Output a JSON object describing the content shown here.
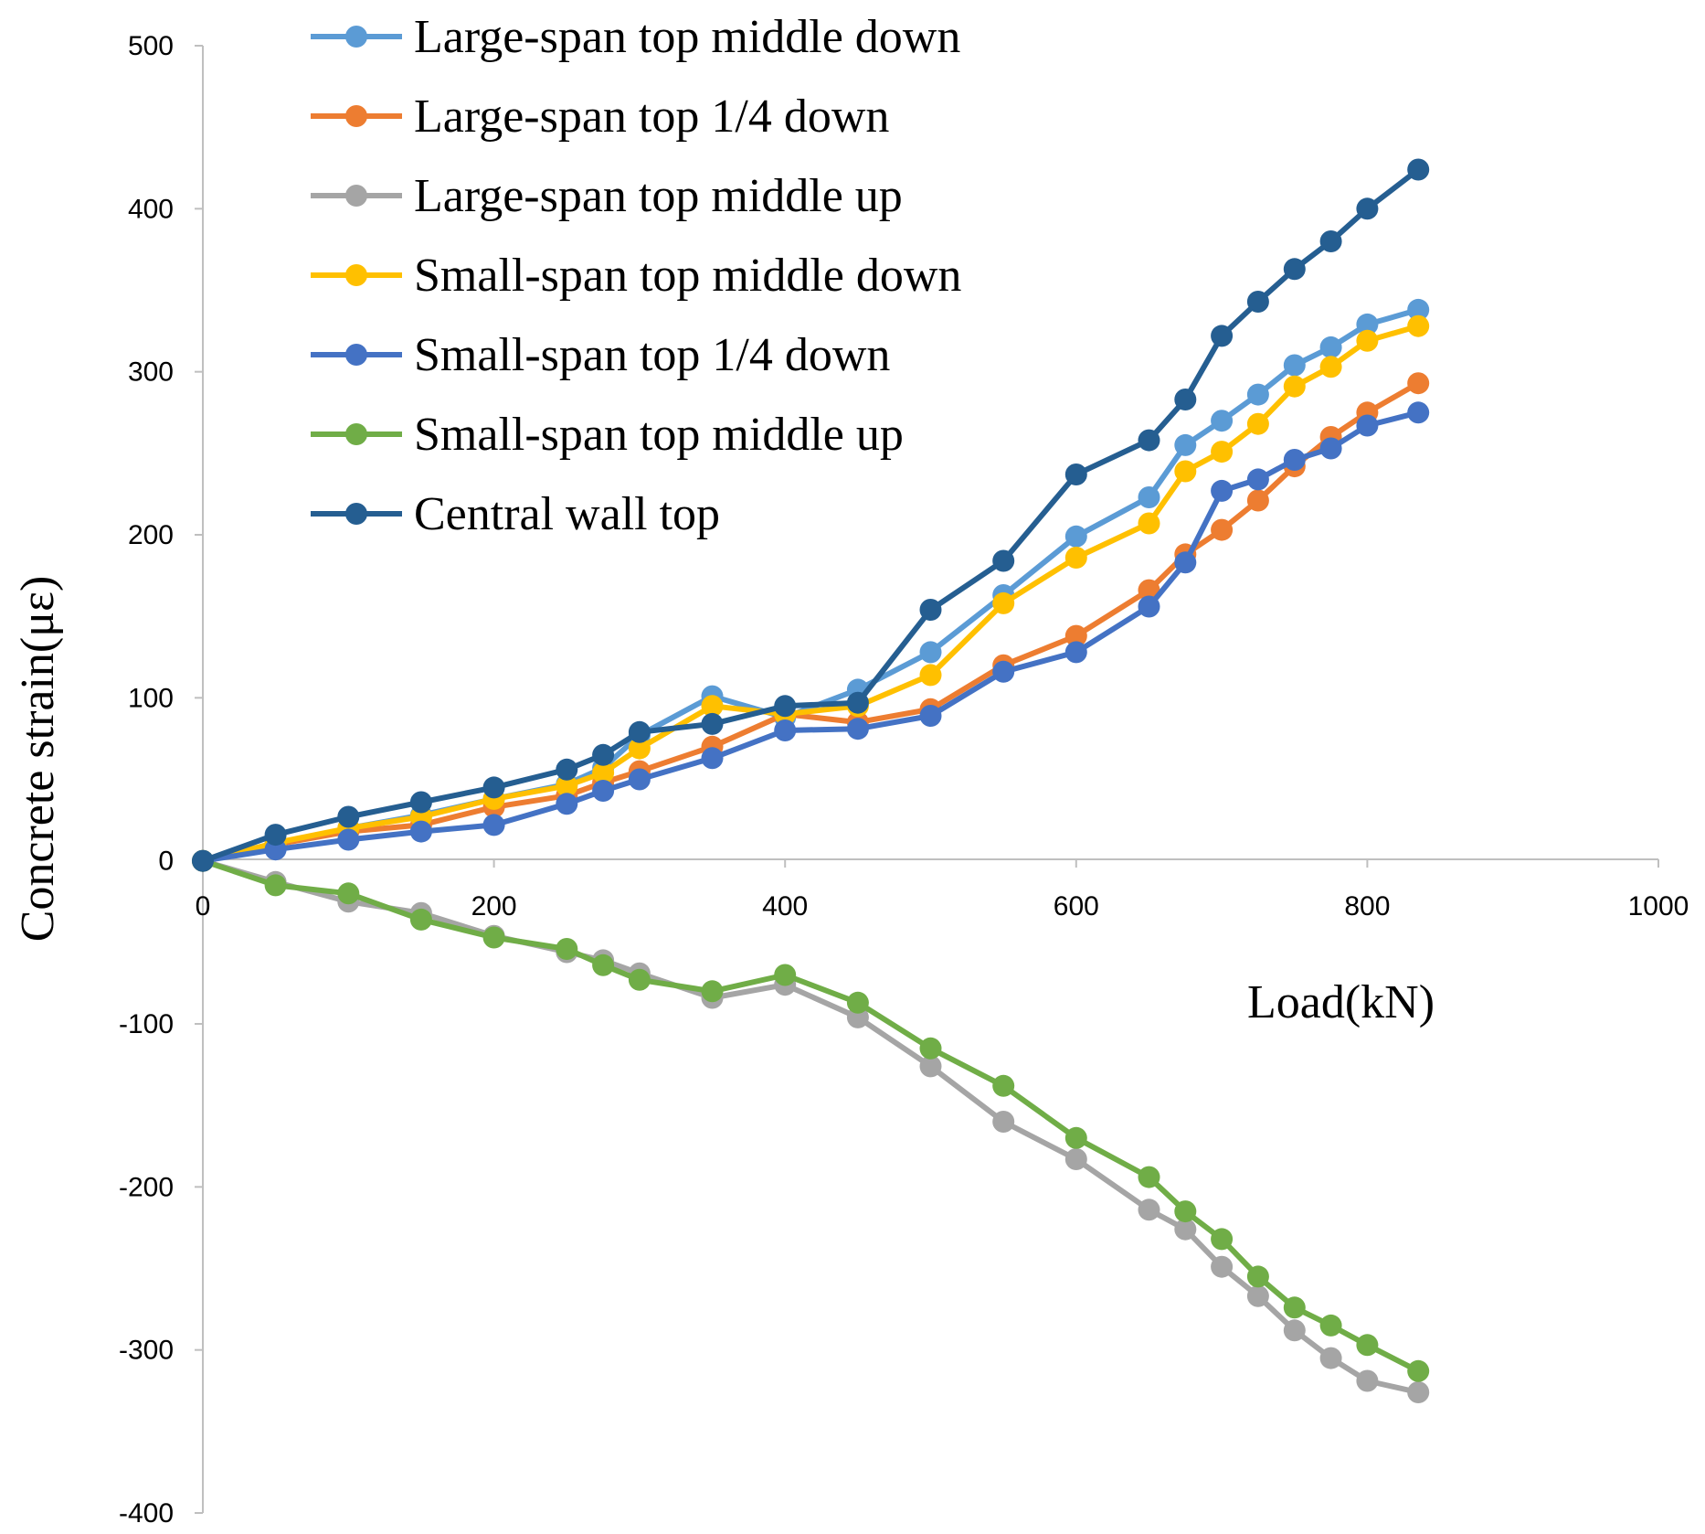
{
  "chart_data": {
    "type": "line",
    "title": "",
    "xlabel": "Load(kN)",
    "ylabel": "Concrete strain(με)",
    "xlim": [
      0,
      1000
    ],
    "ylim": [
      -400,
      500
    ],
    "xticks": [
      0,
      200,
      400,
      600,
      800,
      1000
    ],
    "yticks": [
      500,
      400,
      300,
      200,
      100,
      0,
      -100,
      -200,
      -300,
      -400
    ],
    "xtick_labels": [
      "0",
      "200",
      "400",
      "600",
      "800",
      "1000"
    ],
    "ytick_labels": [
      "500",
      "400",
      "300",
      "200",
      "100",
      "0",
      "-100",
      "-200",
      "-300",
      "-400"
    ],
    "grid": false,
    "legend_position": "top-left",
    "x": [
      0,
      50,
      100,
      150,
      200,
      250,
      275,
      300,
      350,
      400,
      450,
      500,
      550,
      600,
      650,
      675,
      700,
      725,
      750,
      775,
      800,
      835
    ],
    "series": [
      {
        "name": "Large-span top middle down",
        "color": "#5b9bd5",
        "values": [
          0,
          10,
          20,
          28,
          38,
          47,
          57,
          77,
          101,
          88,
          105,
          128,
          163,
          199,
          223,
          255,
          270,
          286,
          304,
          315,
          329,
          338
        ]
      },
      {
        "name": "Large-span top 1/4 down",
        "color": "#ed7d31",
        "values": [
          0,
          10,
          18,
          22,
          33,
          40,
          48,
          55,
          70,
          90,
          85,
          93,
          120,
          138,
          166,
          188,
          203,
          221,
          242,
          260,
          275,
          293
        ]
      },
      {
        "name": "Large-span top middle up",
        "color": "#a5a5a5",
        "values": [
          0,
          -13,
          -25,
          -32,
          -46,
          -56,
          -61,
          -69,
          -84,
          -76,
          -96,
          -126,
          -160,
          -183,
          -214,
          -226,
          -249,
          -267,
          -288,
          -305,
          -319,
          -326
        ]
      },
      {
        "name": "Small-span top middle down",
        "color": "#ffc000",
        "values": [
          0,
          11,
          20,
          27,
          38,
          46,
          54,
          69,
          95,
          90,
          95,
          114,
          158,
          186,
          207,
          239,
          251,
          268,
          291,
          303,
          319,
          328
        ]
      },
      {
        "name": "Small-span top 1/4 down",
        "color": "#4472c4",
        "values": [
          0,
          7,
          13,
          18,
          22,
          35,
          43,
          50,
          63,
          80,
          81,
          89,
          116,
          128,
          156,
          183,
          227,
          234,
          246,
          253,
          267,
          275
        ]
      },
      {
        "name": "Small-span top middle up",
        "color": "#70ad47",
        "values": [
          0,
          -15,
          -20,
          -36,
          -47,
          -54,
          -64,
          -73,
          -80,
          -70,
          -87,
          -115,
          -138,
          -170,
          -194,
          -215,
          -232,
          -255,
          -274,
          -285,
          -297,
          -313
        ]
      },
      {
        "name": "Central wall top",
        "color": "#255e91",
        "values": [
          0,
          16,
          27,
          36,
          45,
          56,
          65,
          79,
          84,
          95,
          97,
          154,
          184,
          237,
          258,
          283,
          322,
          343,
          363,
          380,
          400,
          424
        ]
      }
    ]
  }
}
